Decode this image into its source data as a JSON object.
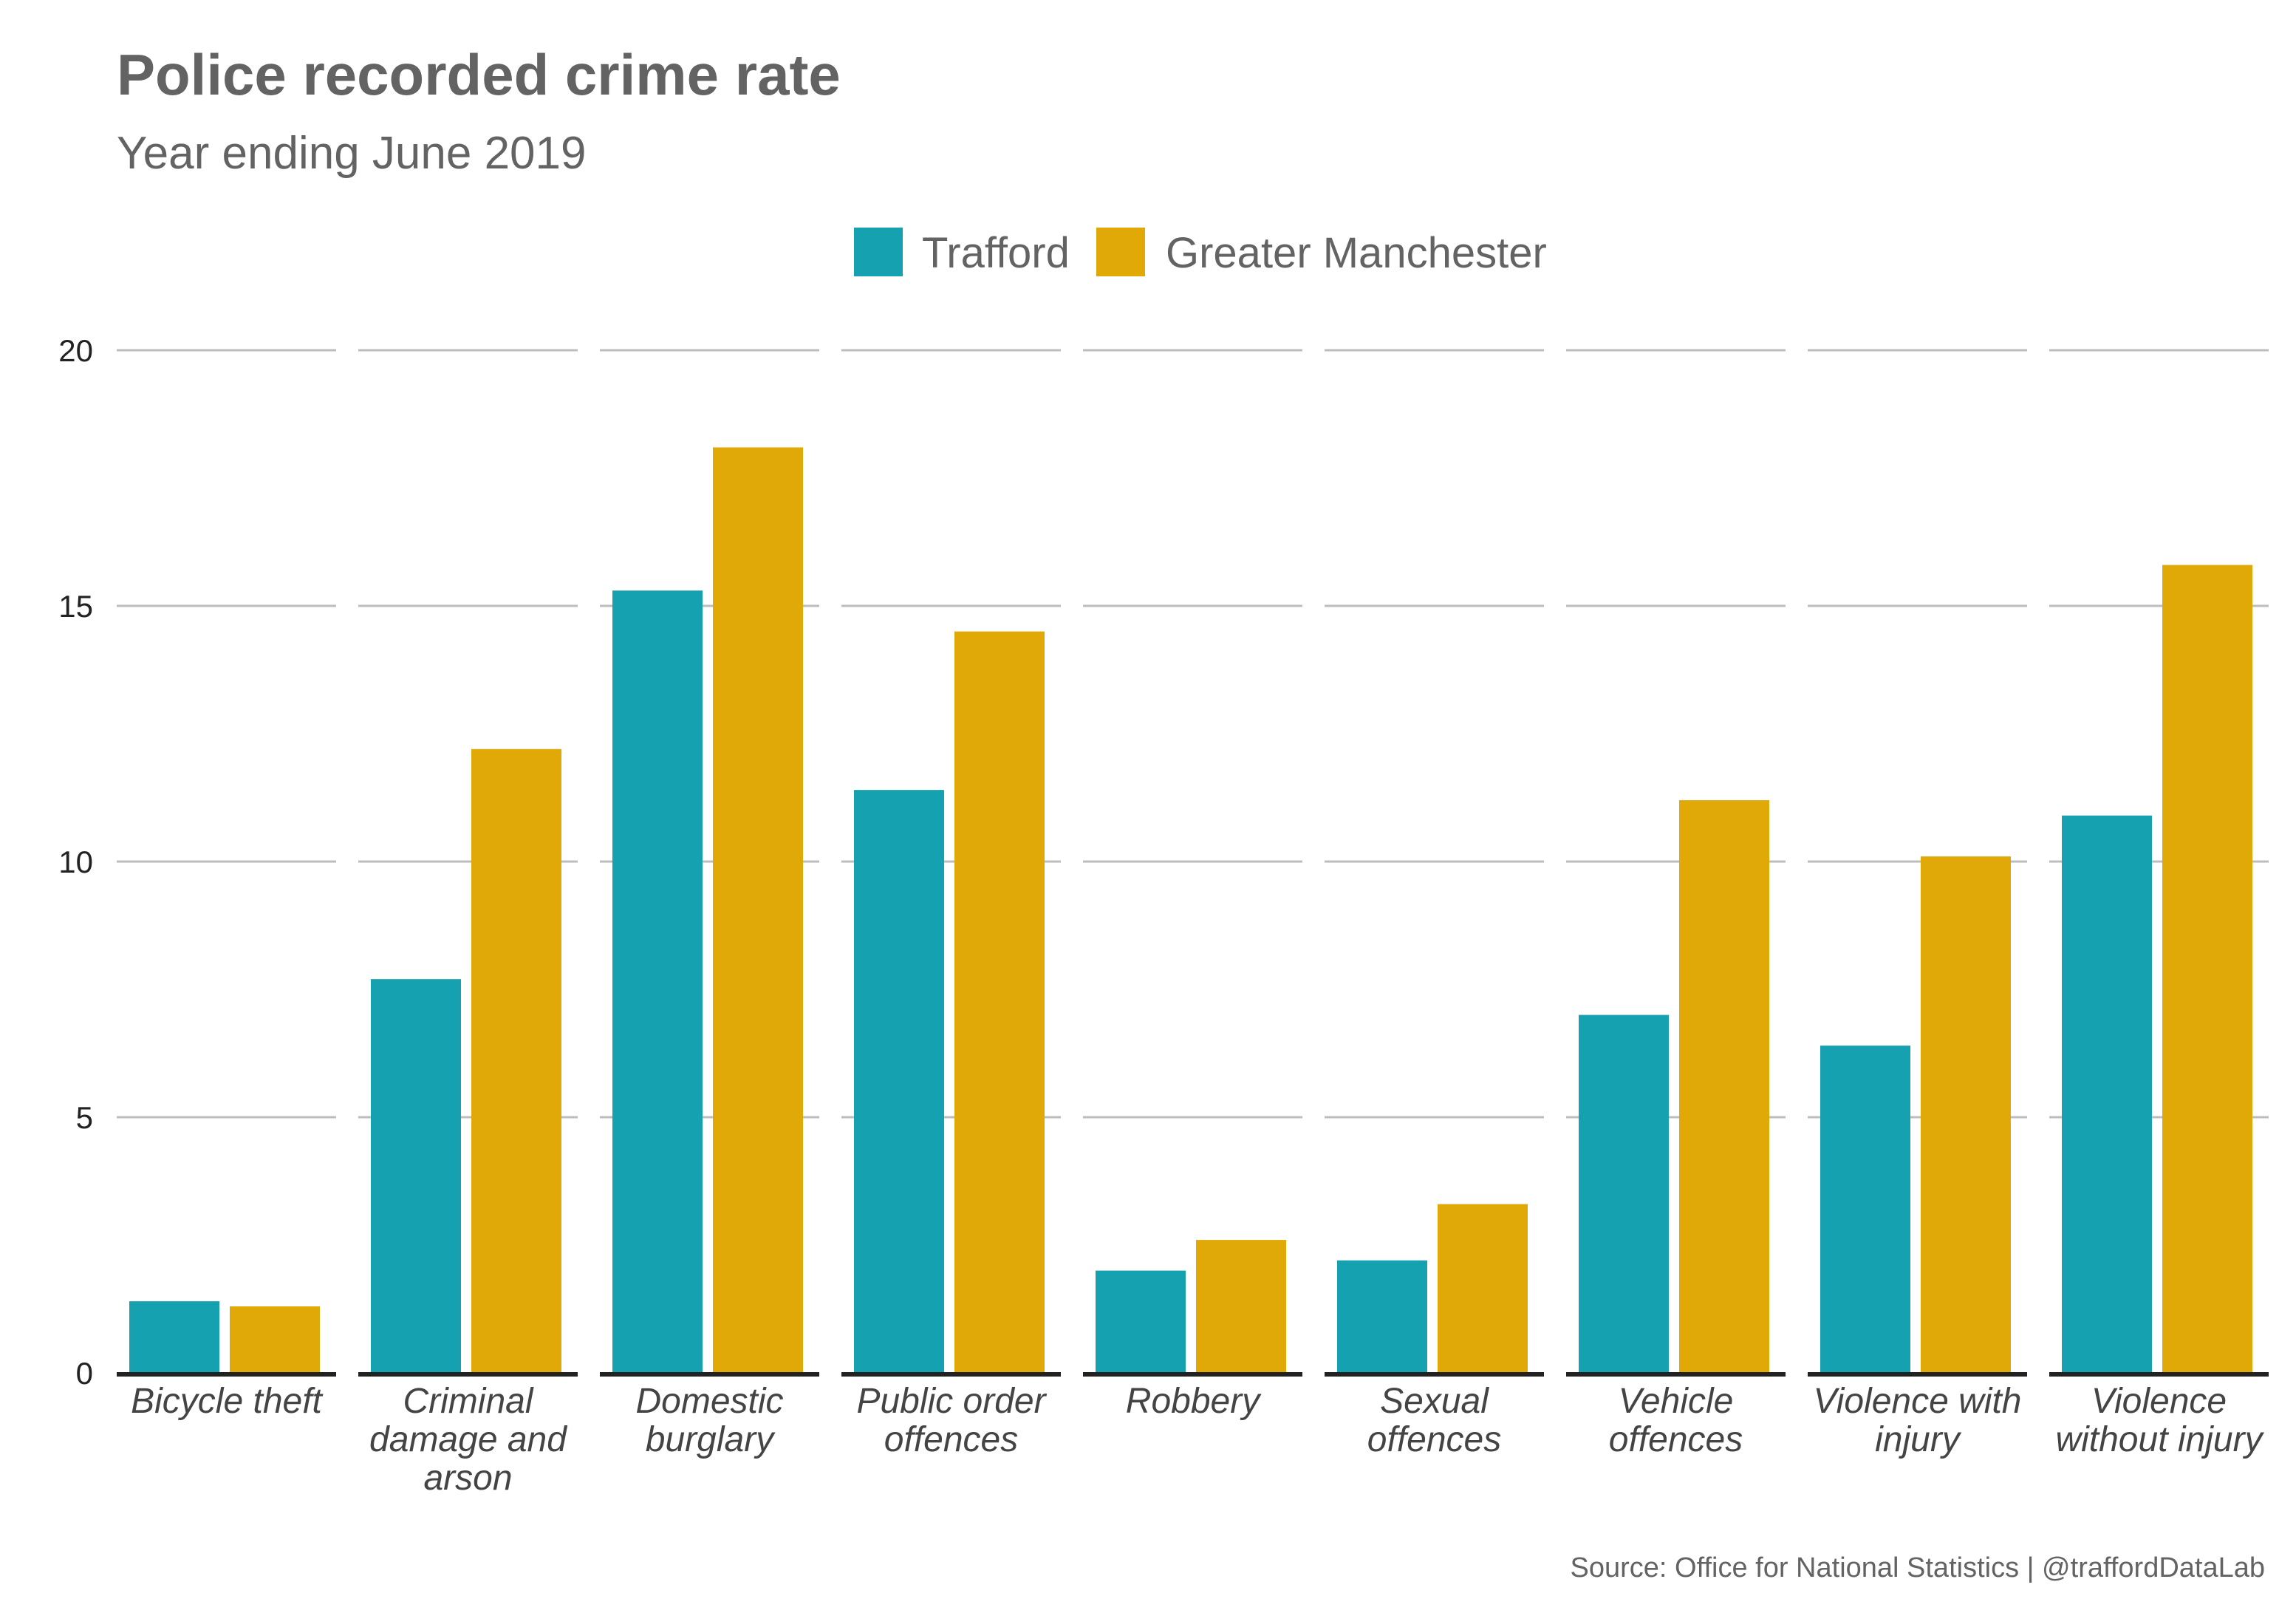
{
  "chart_data": {
    "type": "bar",
    "title": "Police recorded crime rate",
    "subtitle": "Year ending June 2019",
    "caption": "Source: Office for National Statistics | @traffordDataLab",
    "xlabel": "",
    "ylabel": "",
    "ylim": [
      0,
      20
    ],
    "yticks": [
      "0",
      "5",
      "10",
      "15",
      "20"
    ],
    "grid": true,
    "legend_position": "top",
    "categories": [
      [
        "Bicycle theft"
      ],
      [
        "Criminal",
        "damage and",
        "arson"
      ],
      [
        "Domestic",
        "burglary"
      ],
      [
        "Public order",
        "offences"
      ],
      [
        "Robbery"
      ],
      [
        "Sexual",
        "offences"
      ],
      [
        "Vehicle",
        "offences"
      ],
      [
        "Violence with",
        "injury"
      ],
      [
        "Violence",
        "without injury"
      ]
    ],
    "series": [
      {
        "name": "Trafford",
        "color": "#16A1B0",
        "values": [
          1.4,
          7.7,
          15.3,
          11.4,
          2.0,
          2.2,
          7.0,
          6.4,
          10.9
        ]
      },
      {
        "name": "Greater Manchester",
        "color": "#E0A908",
        "values": [
          1.3,
          12.2,
          18.1,
          14.5,
          2.6,
          3.3,
          11.2,
          10.1,
          15.8
        ]
      }
    ]
  }
}
